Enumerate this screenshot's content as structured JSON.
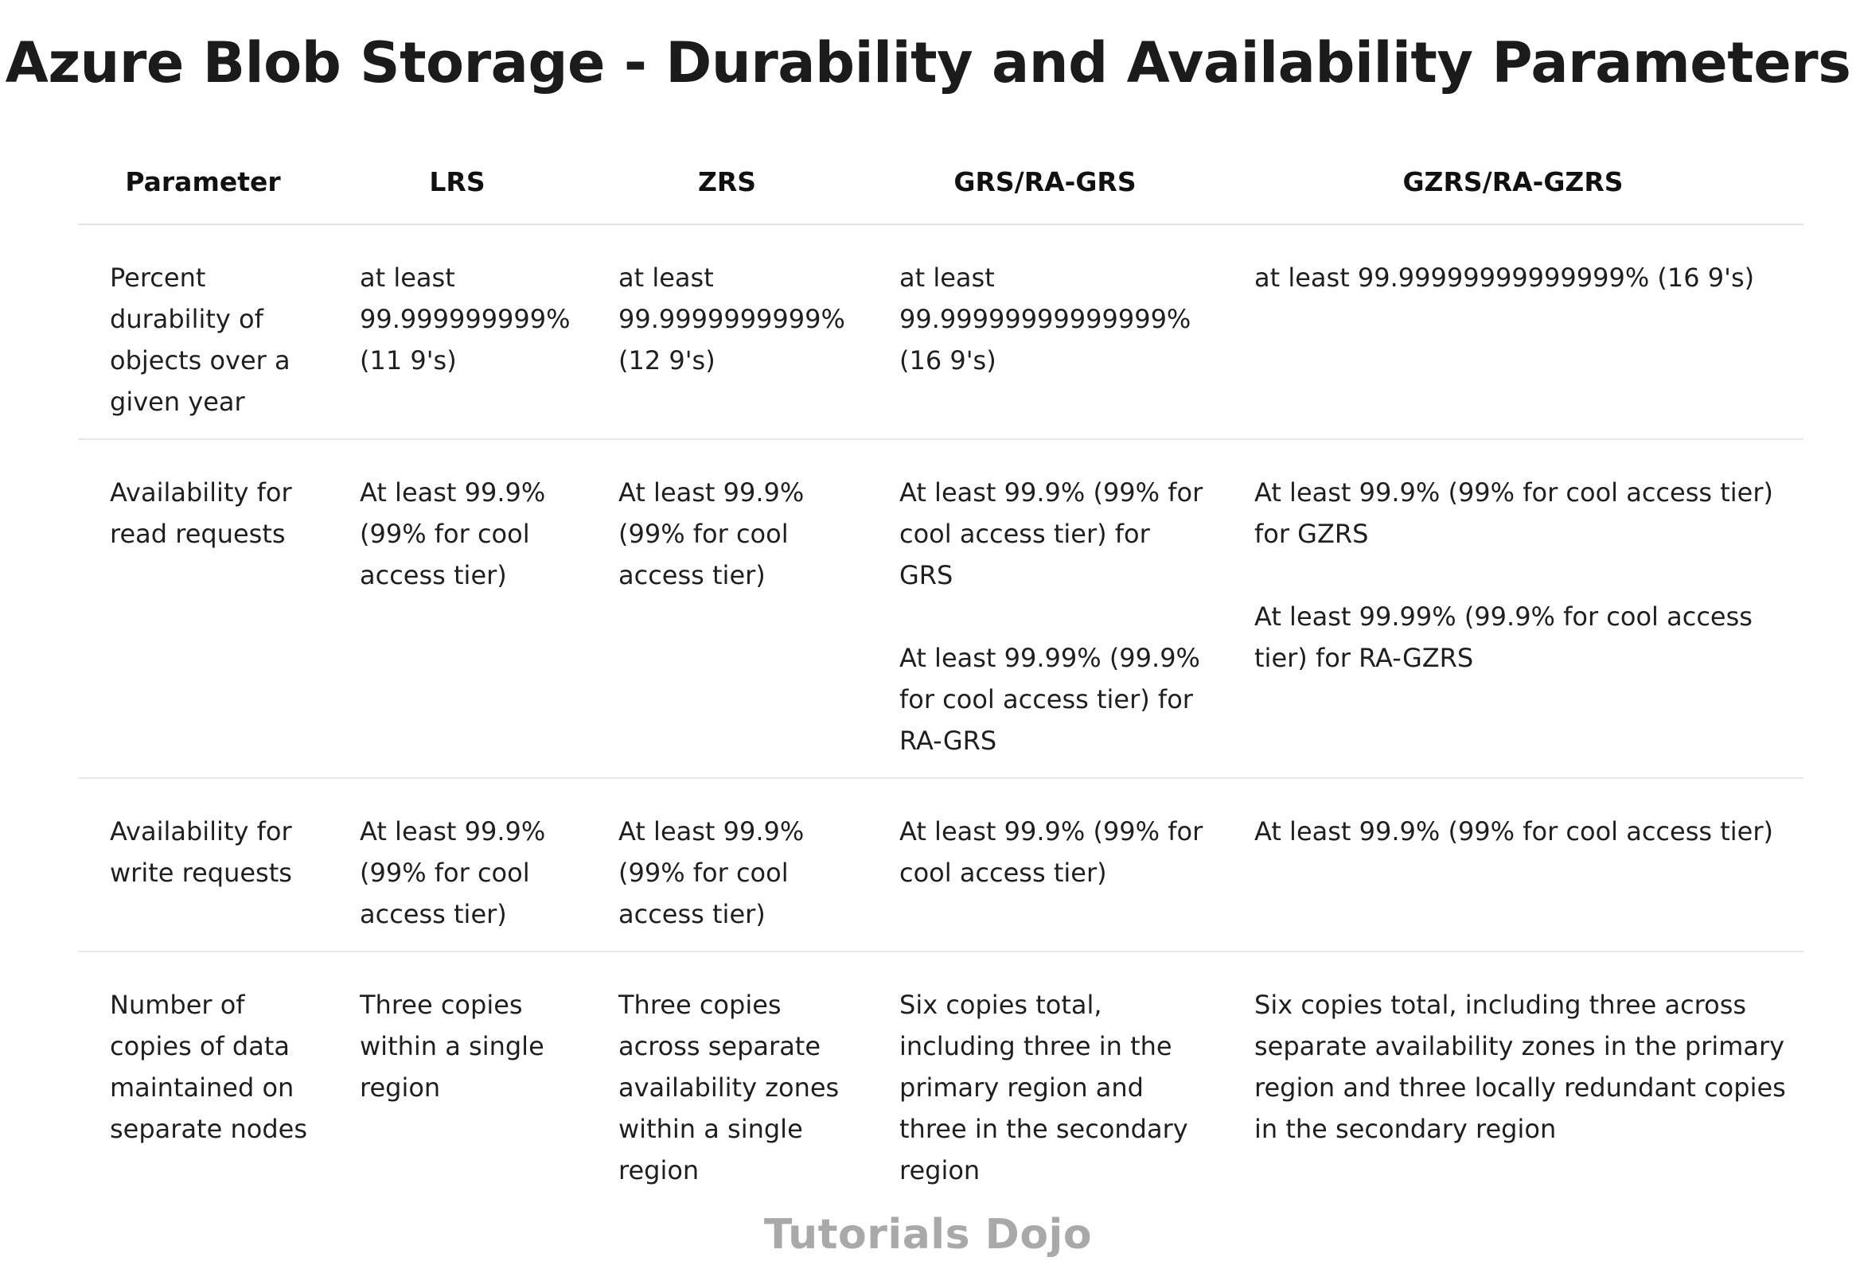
{
  "title": "Azure Blob Storage - Durability and Availability Parameters",
  "table": {
    "headers": [
      "Parameter",
      "LRS",
      "ZRS",
      "GRS/RA-GRS",
      "GZRS/RA-GZRS"
    ],
    "rows": [
      {
        "parameter": "Percent durability of objects over a given year",
        "lrs": [
          "at least 99.999999999% (11 9's)"
        ],
        "zrs": [
          "at least 99.9999999999% (12 9's)"
        ],
        "grs": [
          "at least 99.99999999999999% (16 9's)"
        ],
        "gzrs": [
          "at least 99.99999999999999% (16 9's)"
        ]
      },
      {
        "parameter": "Availability for read requests",
        "lrs": [
          "At least 99.9% (99% for cool access tier)"
        ],
        "zrs": [
          "At least 99.9% (99% for cool access tier)"
        ],
        "grs": [
          "At least 99.9% (99% for cool access tier) for GRS",
          "At least 99.99% (99.9% for cool access tier) for RA-GRS"
        ],
        "gzrs": [
          "At least 99.9% (99% for cool access tier) for GZRS",
          "At least 99.99% (99.9% for cool access tier) for RA-GZRS"
        ]
      },
      {
        "parameter": "Availability for write requests",
        "lrs": [
          "At least 99.9% (99% for cool access tier)"
        ],
        "zrs": [
          "At least 99.9% (99% for cool access tier)"
        ],
        "grs": [
          "At least 99.9% (99% for cool access tier)"
        ],
        "gzrs": [
          "At least 99.9% (99% for cool access tier)"
        ]
      },
      {
        "parameter": "Number of copies of data maintained on separate nodes",
        "lrs": [
          "Three copies within a single region"
        ],
        "zrs": [
          "Three copies across separate availability zones within a single region"
        ],
        "grs": [
          "Six copies total, including three in the primary region and three in the secondary region"
        ],
        "gzrs": [
          "Six copies total, including three across separate availability zones in the primary region and three locally redundant copies in the secondary region"
        ]
      }
    ]
  },
  "watermark": "Tutorials Dojo"
}
